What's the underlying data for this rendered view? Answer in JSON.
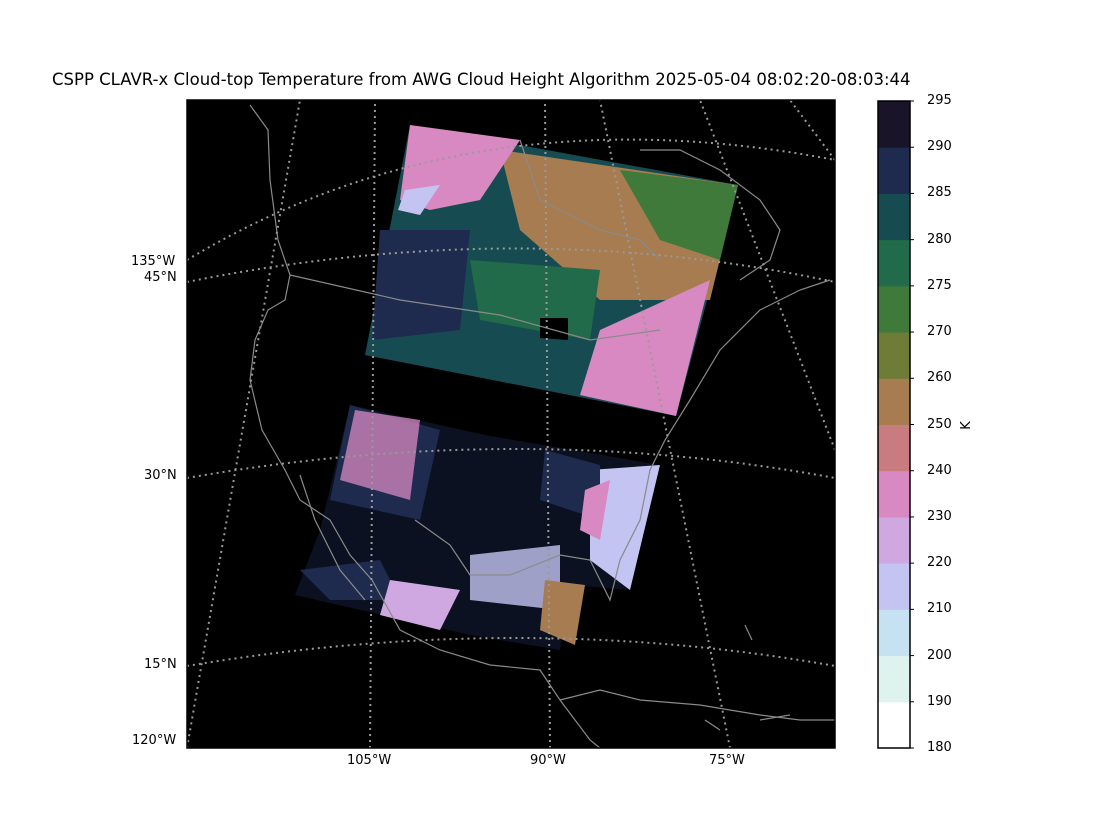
{
  "title": "CSPP CLAVR-x Cloud-top Temperature from AWG Cloud Height Algorithm 2025-05-04 08:02:20-08:03:44",
  "map": {
    "lat_labels": [
      "45°N",
      "30°N",
      "15°N"
    ],
    "lon_labels_left": [
      "135°W",
      "120°W"
    ],
    "lon_labels_bottom": [
      "105°W",
      "90°W",
      "75°W"
    ]
  },
  "colorbar": {
    "unit": "K",
    "range": [
      180,
      295
    ],
    "tick_labels": [
      "180",
      "190",
      "200",
      "210",
      "220",
      "230",
      "240",
      "250",
      "260",
      "270",
      "275",
      "280",
      "285",
      "290",
      "295"
    ],
    "colors": [
      "#ffffff",
      "#dff3ee",
      "#c6e2f2",
      "#c4c4f2",
      "#cfa8e2",
      "#d889c1",
      "#c87c80",
      "#a67c50",
      "#6f7c38",
      "#3f7a3b",
      "#216a4a",
      "#174b52",
      "#1e2b4e",
      "#1a1428",
      "#000000"
    ]
  }
}
